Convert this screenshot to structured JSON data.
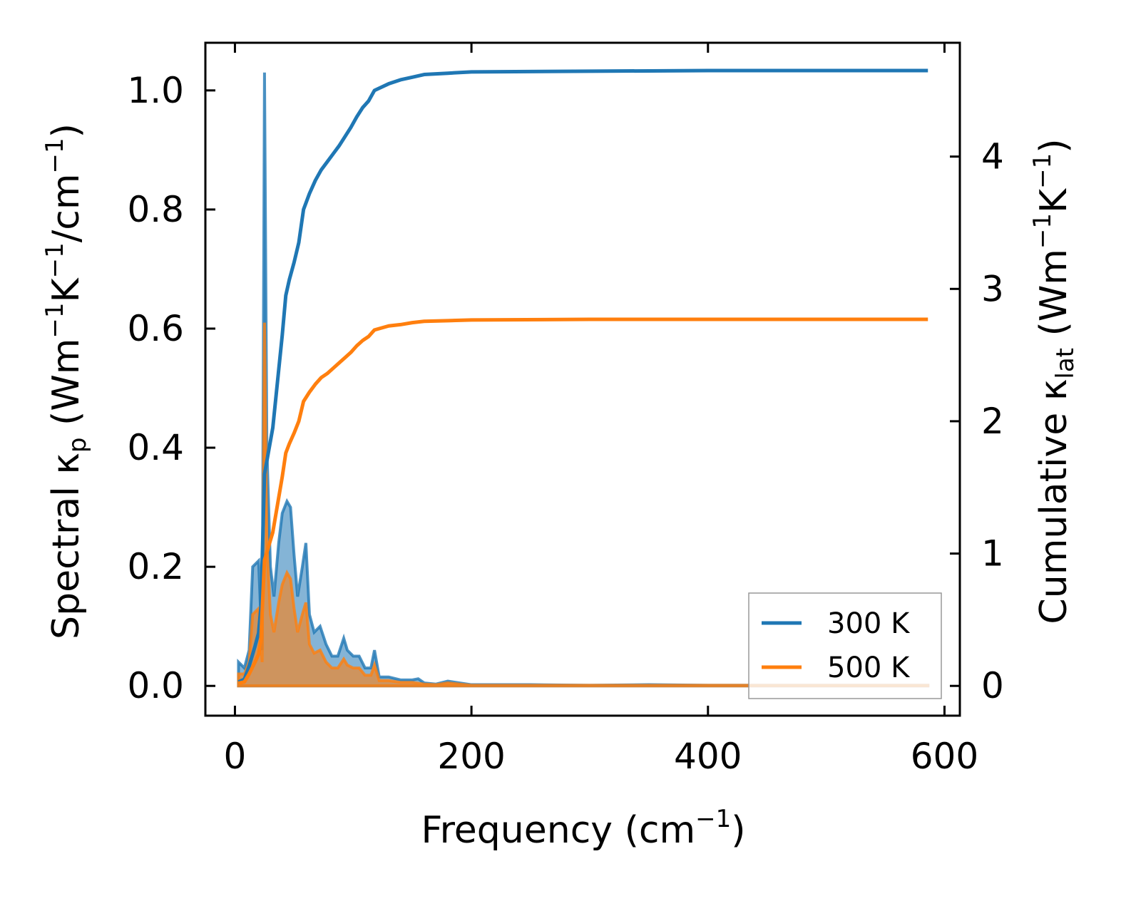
{
  "chart_data": {
    "type": "line",
    "x_axis": {
      "title_main": "Frequency (cm",
      "title_sup": "−1",
      "title_end": ")",
      "range": [
        -25,
        613
      ],
      "ticks": [
        0,
        200,
        400,
        600
      ],
      "tick_labels": [
        "0",
        "200",
        "400",
        "600"
      ]
    },
    "y_left": {
      "title_pre": "Spectral κ",
      "title_sub": "p",
      "title_mid1": " (Wm",
      "title_sup1": "−1",
      "title_mid2": "K",
      "title_sup2": "−1",
      "title_mid3": "/cm",
      "title_sup3": "−1",
      "title_end": ")",
      "range": [
        -0.05,
        1.08
      ],
      "ticks": [
        0.0,
        0.2,
        0.4,
        0.6,
        0.8,
        1.0
      ],
      "tick_labels": [
        "0.0",
        "0.2",
        "0.4",
        "0.6",
        "0.8",
        "1.0"
      ]
    },
    "y_right": {
      "title_pre": "Cumulative κ",
      "title_sub": "lat",
      "title_mid1": " (Wm",
      "title_sup1": "−1",
      "title_mid2": "K",
      "title_sup2": "−1",
      "title_end": ")",
      "range": [
        -0.225,
        4.86
      ],
      "ticks": [
        0,
        1,
        2,
        3,
        4
      ],
      "tick_labels": [
        "0",
        "1",
        "2",
        "3",
        "4"
      ]
    },
    "grid": false,
    "legend_position": "lower-right",
    "series": [
      {
        "name": "300 K",
        "color": "#1f77b4",
        "spectral": [
          [
            3,
            0.04
          ],
          [
            8,
            0.03
          ],
          [
            12,
            0.06
          ],
          [
            15,
            0.2
          ],
          [
            20,
            0.21
          ],
          [
            23,
            0.06
          ],
          [
            25,
            1.03
          ],
          [
            27,
            0.4
          ],
          [
            30,
            0.2
          ],
          [
            33,
            0.15
          ],
          [
            37,
            0.24
          ],
          [
            40,
            0.29
          ],
          [
            44,
            0.31
          ],
          [
            47,
            0.3
          ],
          [
            50,
            0.22
          ],
          [
            53,
            0.15
          ],
          [
            57,
            0.2
          ],
          [
            60,
            0.24
          ],
          [
            63,
            0.12
          ],
          [
            67,
            0.09
          ],
          [
            72,
            0.1
          ],
          [
            77,
            0.07
          ],
          [
            82,
            0.05
          ],
          [
            87,
            0.05
          ],
          [
            92,
            0.08
          ],
          [
            95,
            0.06
          ],
          [
            100,
            0.05
          ],
          [
            105,
            0.05
          ],
          [
            110,
            0.03
          ],
          [
            115,
            0.03
          ],
          [
            118,
            0.06
          ],
          [
            122,
            0.015
          ],
          [
            130,
            0.015
          ],
          [
            140,
            0.01
          ],
          [
            150,
            0.01
          ],
          [
            155,
            0.012
          ],
          [
            160,
            0.005
          ],
          [
            170,
            0.003
          ],
          [
            180,
            0.008
          ],
          [
            190,
            0.005
          ],
          [
            200,
            0.002
          ],
          [
            250,
            0.002
          ],
          [
            300,
            0.001
          ],
          [
            350,
            0.002
          ],
          [
            400,
            0.001
          ],
          [
            500,
            0.001
          ],
          [
            586,
            0.001
          ]
        ],
        "cumulative": [
          [
            3,
            0.03
          ],
          [
            8,
            0.05
          ],
          [
            12,
            0.15
          ],
          [
            17,
            0.3
          ],
          [
            20,
            0.4
          ],
          [
            22,
            0.6
          ],
          [
            25,
            1.6
          ],
          [
            28,
            1.75
          ],
          [
            32,
            1.95
          ],
          [
            36,
            2.3
          ],
          [
            40,
            2.65
          ],
          [
            43,
            2.95
          ],
          [
            46,
            3.07
          ],
          [
            50,
            3.2
          ],
          [
            54,
            3.35
          ],
          [
            58,
            3.6
          ],
          [
            63,
            3.72
          ],
          [
            68,
            3.82
          ],
          [
            73,
            3.9
          ],
          [
            78,
            3.96
          ],
          [
            83,
            4.02
          ],
          [
            88,
            4.08
          ],
          [
            93,
            4.15
          ],
          [
            98,
            4.22
          ],
          [
            103,
            4.3
          ],
          [
            108,
            4.37
          ],
          [
            113,
            4.42
          ],
          [
            118,
            4.5
          ],
          [
            130,
            4.55
          ],
          [
            140,
            4.58
          ],
          [
            150,
            4.6
          ],
          [
            160,
            4.62
          ],
          [
            180,
            4.63
          ],
          [
            200,
            4.64
          ],
          [
            300,
            4.645
          ],
          [
            400,
            4.65
          ],
          [
            586,
            4.65
          ]
        ]
      },
      {
        "name": "500 K",
        "color": "#ff7f0e",
        "spectral": [
          [
            3,
            0.02
          ],
          [
            8,
            0.02
          ],
          [
            12,
            0.04
          ],
          [
            15,
            0.12
          ],
          [
            20,
            0.13
          ],
          [
            23,
            0.04
          ],
          [
            25,
            0.61
          ],
          [
            27,
            0.24
          ],
          [
            30,
            0.12
          ],
          [
            33,
            0.09
          ],
          [
            37,
            0.14
          ],
          [
            40,
            0.17
          ],
          [
            44,
            0.19
          ],
          [
            47,
            0.18
          ],
          [
            50,
            0.13
          ],
          [
            53,
            0.09
          ],
          [
            57,
            0.12
          ],
          [
            60,
            0.14
          ],
          [
            63,
            0.07
          ],
          [
            67,
            0.055
          ],
          [
            72,
            0.06
          ],
          [
            77,
            0.04
          ],
          [
            82,
            0.03
          ],
          [
            87,
            0.03
          ],
          [
            92,
            0.045
          ],
          [
            95,
            0.035
          ],
          [
            100,
            0.03
          ],
          [
            105,
            0.03
          ],
          [
            110,
            0.018
          ],
          [
            115,
            0.018
          ],
          [
            118,
            0.035
          ],
          [
            122,
            0.009
          ],
          [
            130,
            0.009
          ],
          [
            140,
            0.006
          ],
          [
            150,
            0.006
          ],
          [
            160,
            0.003
          ],
          [
            170,
            0.002
          ],
          [
            180,
            0.005
          ],
          [
            190,
            0.003
          ],
          [
            200,
            0.001
          ],
          [
            300,
            0.001
          ],
          [
            400,
            0.001
          ],
          [
            586,
            0.001
          ]
        ],
        "cumulative": [
          [
            3,
            0.02
          ],
          [
            8,
            0.03
          ],
          [
            12,
            0.09
          ],
          [
            17,
            0.18
          ],
          [
            20,
            0.24
          ],
          [
            22,
            0.36
          ],
          [
            25,
            0.95
          ],
          [
            28,
            1.04
          ],
          [
            32,
            1.16
          ],
          [
            36,
            1.37
          ],
          [
            40,
            1.58
          ],
          [
            43,
            1.76
          ],
          [
            46,
            1.83
          ],
          [
            50,
            1.91
          ],
          [
            54,
            2.0
          ],
          [
            58,
            2.15
          ],
          [
            63,
            2.22
          ],
          [
            68,
            2.28
          ],
          [
            73,
            2.33
          ],
          [
            78,
            2.36
          ],
          [
            83,
            2.4
          ],
          [
            88,
            2.44
          ],
          [
            93,
            2.48
          ],
          [
            98,
            2.52
          ],
          [
            103,
            2.57
          ],
          [
            108,
            2.61
          ],
          [
            113,
            2.64
          ],
          [
            118,
            2.69
          ],
          [
            130,
            2.72
          ],
          [
            140,
            2.73
          ],
          [
            150,
            2.745
          ],
          [
            160,
            2.755
          ],
          [
            180,
            2.76
          ],
          [
            200,
            2.765
          ],
          [
            300,
            2.77
          ],
          [
            400,
            2.77
          ],
          [
            586,
            2.77
          ]
        ]
      }
    ]
  }
}
